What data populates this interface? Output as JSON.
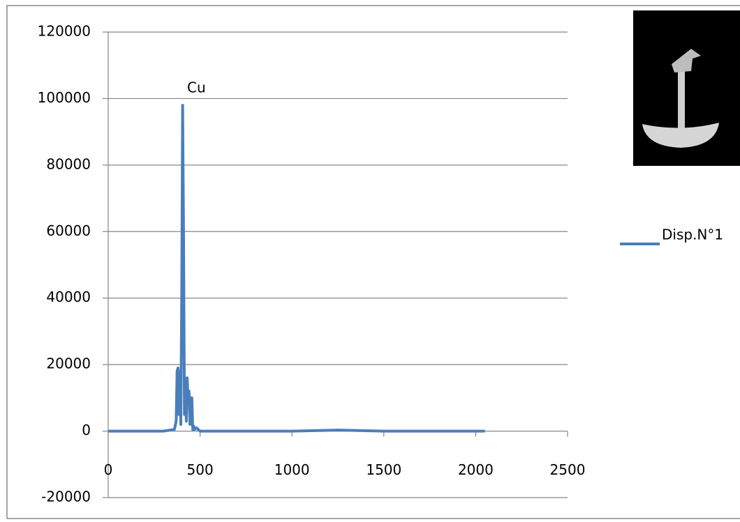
{
  "chart_data": {
    "type": "line",
    "annotation": "Cu",
    "x": [
      0,
      100,
      200,
      300,
      360,
      370,
      375,
      380,
      385,
      390,
      395,
      400,
      405,
      410,
      415,
      420,
      425,
      430,
      435,
      440,
      445,
      450,
      455,
      460,
      465,
      470,
      480,
      500,
      600,
      800,
      1000,
      1250,
      1500,
      1800,
      2050
    ],
    "series": [
      {
        "name": "Disp.N°1",
        "color": "#4a7ebb",
        "values": [
          0,
          0,
          0,
          0,
          500,
          3000,
          18000,
          19000,
          5000,
          18000,
          2000,
          40000,
          98000,
          60000,
          5000,
          16000,
          3000,
          16000,
          8000,
          12000,
          2000,
          10000,
          10000,
          500,
          1500,
          500,
          1000,
          0,
          0,
          0,
          0,
          300,
          0,
          0,
          0
        ]
      }
    ],
    "xlim": [
      0,
      2500
    ],
    "xticks": [
      0,
      500,
      1000,
      1500,
      2000,
      2500
    ],
    "ylim": [
      -20000,
      120000
    ],
    "yticks": [
      -20000,
      0,
      20000,
      40000,
      60000,
      80000,
      100000,
      120000
    ],
    "grid": true,
    "legend": "right"
  }
}
